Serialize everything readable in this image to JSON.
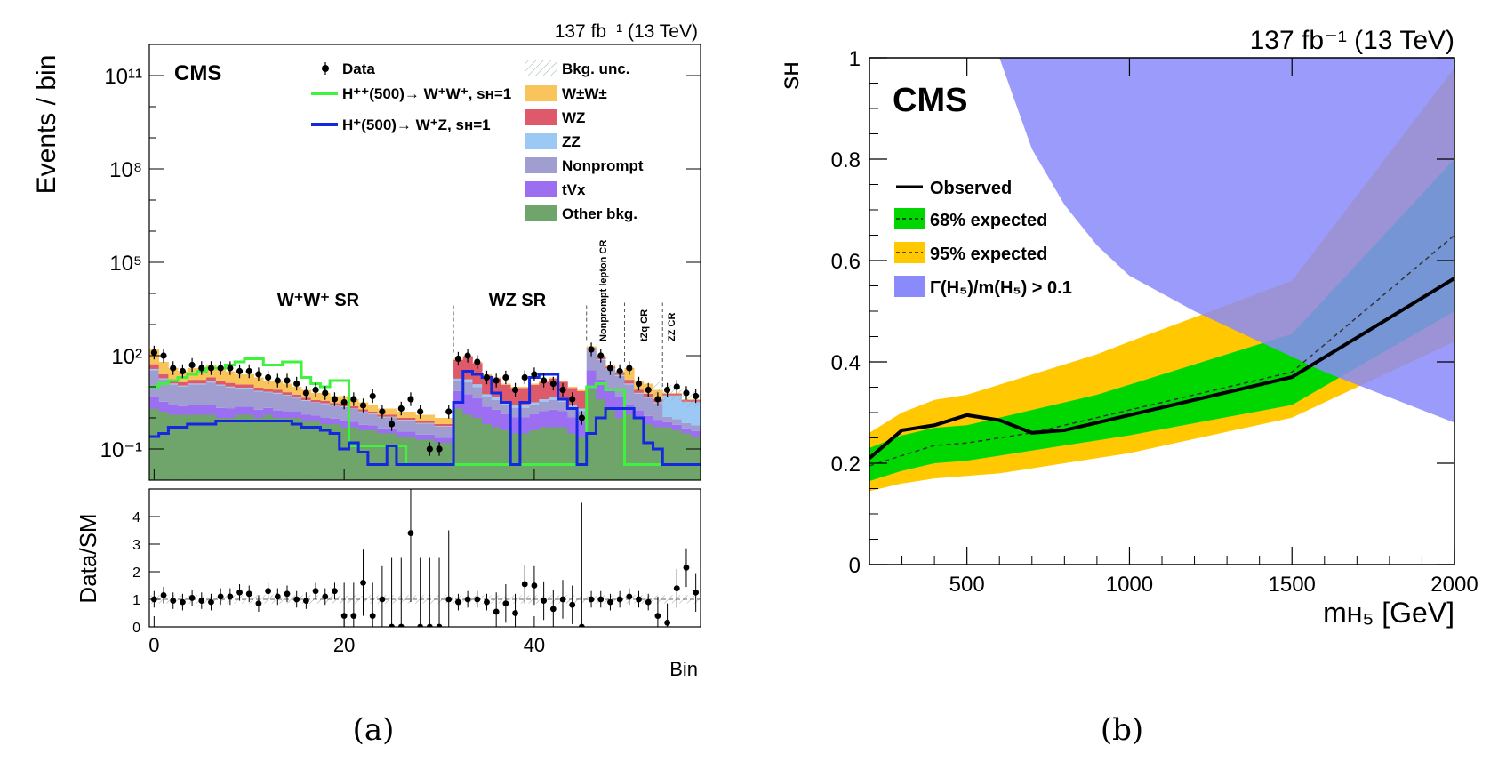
{
  "colors": {
    "wpwp": "#f8c45b",
    "wz": "#de5a6a",
    "zz": "#9cc8f4",
    "nonprompt": "#a09ed0",
    "tvx": "#9b6ef2",
    "other": "#6fa56a",
    "hpp": "#3ef23e",
    "hp": "#1428e0",
    "green68": "#00d600",
    "yellow95": "#ffc800",
    "purple": "#8a8afa"
  },
  "chart_data": [
    {
      "id": "a",
      "type": "bar",
      "caption": "(a)",
      "title": "137 fb⁻¹ (13 TeV)",
      "cms_label": "CMS",
      "ylabel": "Events / bin",
      "xlabel": "Bin",
      "ratio_ylabel": "Data/SM",
      "ylim_log10": [
        -2,
        12
      ],
      "xlim": [
        -0.5,
        57.5
      ],
      "yticks": [
        {
          "v": -1,
          "label": "10⁻¹"
        },
        {
          "v": 2,
          "label": "10²"
        },
        {
          "v": 5,
          "label": "10⁵"
        },
        {
          "v": 8,
          "label": "10⁸"
        },
        {
          "v": 11,
          "label": "10¹¹"
        }
      ],
      "xticks": [
        0,
        20,
        40
      ],
      "ratio_ylim": [
        0,
        5
      ],
      "ratio_yticks": [
        0,
        1,
        2,
        3,
        4
      ],
      "region_labels": [
        "W⁺W⁺ SR",
        "WZ SR",
        "Nonprompt lepton CR",
        "tZq CR",
        "ZZ CR"
      ],
      "region_boundaries": [
        31.5,
        45.5,
        49.5,
        53.5
      ],
      "legend": {
        "data": "Data",
        "hpp": "H⁺⁺(500)→ W⁺W⁺, sʜ=1",
        "hp": "H⁺(500)→ W⁺Z, sʜ=1",
        "unc": "Bkg. unc.",
        "wpwp": "W±W±",
        "wz": "WZ",
        "zz": "ZZ",
        "nonprompt": "Nonprompt",
        "tvx": "tVx",
        "other": "Other bkg."
      },
      "series": {
        "total_log10": [
          2.2,
          1.8,
          1.6,
          1.5,
          1.6,
          1.6,
          1.7,
          1.6,
          1.5,
          1.4,
          1.4,
          1.3,
          1.2,
          1.2,
          1.1,
          1.0,
          0.9,
          0.8,
          0.8,
          0.7,
          0.7,
          0.6,
          0.5,
          0.4,
          0.3,
          0.3,
          0.2,
          0.2,
          0.1,
          0.1,
          0.0,
          0.0,
          1.9,
          2.0,
          1.8,
          1.4,
          1.3,
          1.1,
          1.0,
          1.0,
          1.1,
          1.2,
          1.3,
          1.2,
          1.0,
          0.9,
          2.3,
          2.0,
          1.7,
          1.5,
          1.6,
          1.2,
          1.1,
          0.9,
          0.8,
          0.8,
          0.6,
          0.6
        ],
        "other_log10": [
          0.3,
          0.2,
          0.1,
          0.1,
          0.1,
          0.1,
          0.1,
          0.0,
          0.0,
          0.1,
          0.1,
          0.0,
          0.1,
          0.0,
          0.0,
          0.0,
          -0.1,
          -0.1,
          -0.2,
          -0.2,
          -0.3,
          -0.3,
          -0.4,
          -0.4,
          -0.5,
          -0.5,
          -0.6,
          -0.6,
          -0.7,
          -0.7,
          -0.8,
          -0.8,
          0.3,
          0.1,
          0.0,
          -0.2,
          -0.3,
          -0.4,
          -0.5,
          -0.5,
          -0.4,
          -0.3,
          -0.3,
          -0.3,
          -0.5,
          -0.6,
          0.9,
          0.6,
          0.3,
          0.0,
          0.1,
          0.0,
          -0.2,
          -0.3,
          -0.3,
          -0.4,
          -0.5,
          -0.6
        ],
        "hpp_log10": [
          1.0,
          1.1,
          1.2,
          1.3,
          1.4,
          1.5,
          1.6,
          1.6,
          1.7,
          1.8,
          1.9,
          1.9,
          1.7,
          1.7,
          1.8,
          1.8,
          1.3,
          1.1,
          1.0,
          1.2,
          1.2,
          -0.9,
          -0.9,
          -0.9,
          -0.9,
          -0.9,
          -0.9,
          -1.5,
          -1.5,
          -1.5,
          -1.5,
          -1.5,
          -1.5,
          -1.5,
          -1.5,
          -1.5,
          -1.5,
          -1.5,
          -1.5,
          -1.5,
          -1.5,
          -1.5,
          -1.5,
          -1.5,
          -1.5,
          -1.5,
          1.0,
          1.1,
          0.9,
          0.9,
          -1.5,
          -1.5,
          -1.5,
          -1.5,
          -1.5,
          -1.5,
          -1.5,
          -1.5
        ],
        "hp_log10": [
          -0.6,
          -0.5,
          -0.3,
          -0.3,
          -0.2,
          -0.2,
          -0.2,
          -0.1,
          -0.1,
          -0.1,
          -0.1,
          -0.1,
          -0.1,
          -0.1,
          -0.1,
          -0.2,
          -0.3,
          -0.3,
          -0.4,
          -0.5,
          -1.0,
          -0.8,
          -1.1,
          -1.5,
          -1.5,
          -0.9,
          -1.5,
          -1.5,
          -1.5,
          -1.5,
          -1.5,
          -1.5,
          0.5,
          1.5,
          1.4,
          1.3,
          0.8,
          0.5,
          -1.5,
          0.5,
          1.3,
          1.4,
          1.4,
          0.6,
          0.3,
          -1.5,
          -0.5,
          0.0,
          0.3,
          0.3,
          0.3,
          0.0,
          -0.8,
          -1.0,
          -1.5,
          -1.5,
          -1.5,
          -1.5
        ],
        "data_log10": [
          2.1,
          2.0,
          1.6,
          1.5,
          1.7,
          1.6,
          1.6,
          1.6,
          1.6,
          1.5,
          1.5,
          1.4,
          1.3,
          1.2,
          1.2,
          1.1,
          0.8,
          0.9,
          0.8,
          0.6,
          0.5,
          0.6,
          0.4,
          0.7,
          0.2,
          -0.2,
          0.3,
          0.6,
          0.2,
          -1.0,
          -1.0,
          0.2,
          1.9,
          2.0,
          1.8,
          1.3,
          1.2,
          1.3,
          0.9,
          1.3,
          1.4,
          1.2,
          1.1,
          0.9,
          0.6,
          0.0,
          2.2,
          2.0,
          1.6,
          1.5,
          1.6,
          1.1,
          0.9,
          0.6,
          0.9,
          1.0,
          0.8,
          0.7
        ],
        "ratio": [
          1.0,
          1.15,
          0.95,
          0.9,
          1.05,
          0.95,
          0.9,
          1.1,
          1.1,
          1.25,
          1.2,
          0.85,
          1.3,
          1.1,
          1.2,
          1.0,
          0.95,
          1.3,
          1.1,
          1.3,
          0.4,
          0.4,
          1.6,
          0.4,
          1.0,
          0.0,
          0.0,
          3.4,
          0.0,
          0.0,
          0.0,
          1.0,
          0.9,
          1.0,
          1.0,
          0.9,
          0.55,
          0.85,
          0.5,
          1.55,
          1.5,
          0.95,
          0.65,
          1.0,
          0.8,
          0.0,
          1.0,
          1.0,
          0.9,
          1.0,
          1.1,
          1.0,
          0.9,
          0.4,
          0.15,
          1.4,
          2.15,
          1.25
        ]
      }
    },
    {
      "id": "b",
      "type": "line",
      "caption": "(b)",
      "title": "137 fb⁻¹ (13 TeV)",
      "cms_label": "CMS",
      "ylabel": "sʜ",
      "xlabel": "mʜ₅ [GeV]",
      "xlim": [
        200,
        2000
      ],
      "ylim": [
        0,
        1
      ],
      "xticks": [
        500,
        1000,
        1500,
        2000
      ],
      "yticks": [
        0,
        0.2,
        0.4,
        0.6,
        0.8,
        1
      ],
      "legend": [
        "Observed",
        "68% expected",
        "95% expected",
        "Γ(H₅)/m(H₅) > 0.1"
      ],
      "x": [
        200,
        300,
        400,
        500,
        600,
        700,
        800,
        900,
        1000,
        1500,
        2000
      ],
      "observed": [
        0.21,
        0.265,
        0.275,
        0.295,
        0.285,
        0.26,
        0.265,
        0.28,
        0.295,
        0.37,
        0.565
      ],
      "expected": [
        0.195,
        0.215,
        0.235,
        0.24,
        0.25,
        0.26,
        0.275,
        0.29,
        0.305,
        0.38,
        0.65
      ],
      "band68_low": [
        0.165,
        0.185,
        0.2,
        0.205,
        0.215,
        0.225,
        0.235,
        0.245,
        0.255,
        0.315,
        0.5
      ],
      "band68_high": [
        0.23,
        0.255,
        0.27,
        0.275,
        0.29,
        0.305,
        0.32,
        0.335,
        0.355,
        0.455,
        0.8
      ],
      "band95_low": [
        0.145,
        0.16,
        0.17,
        0.175,
        0.18,
        0.19,
        0.2,
        0.21,
        0.22,
        0.29,
        0.44
      ],
      "band95_high": [
        0.26,
        0.3,
        0.325,
        0.335,
        0.355,
        0.375,
        0.395,
        0.415,
        0.44,
        0.56,
        0.98
      ],
      "width_x": [
        600,
        700,
        800,
        900,
        1000,
        1100,
        1200,
        1300,
        1400,
        1500,
        1600,
        1700,
        1800,
        1900,
        2000
      ],
      "width_boundary": [
        1.0,
        0.82,
        0.71,
        0.63,
        0.57,
        0.535,
        0.5,
        0.47,
        0.44,
        0.41,
        0.38,
        0.355,
        0.33,
        0.305,
        0.28
      ]
    }
  ]
}
